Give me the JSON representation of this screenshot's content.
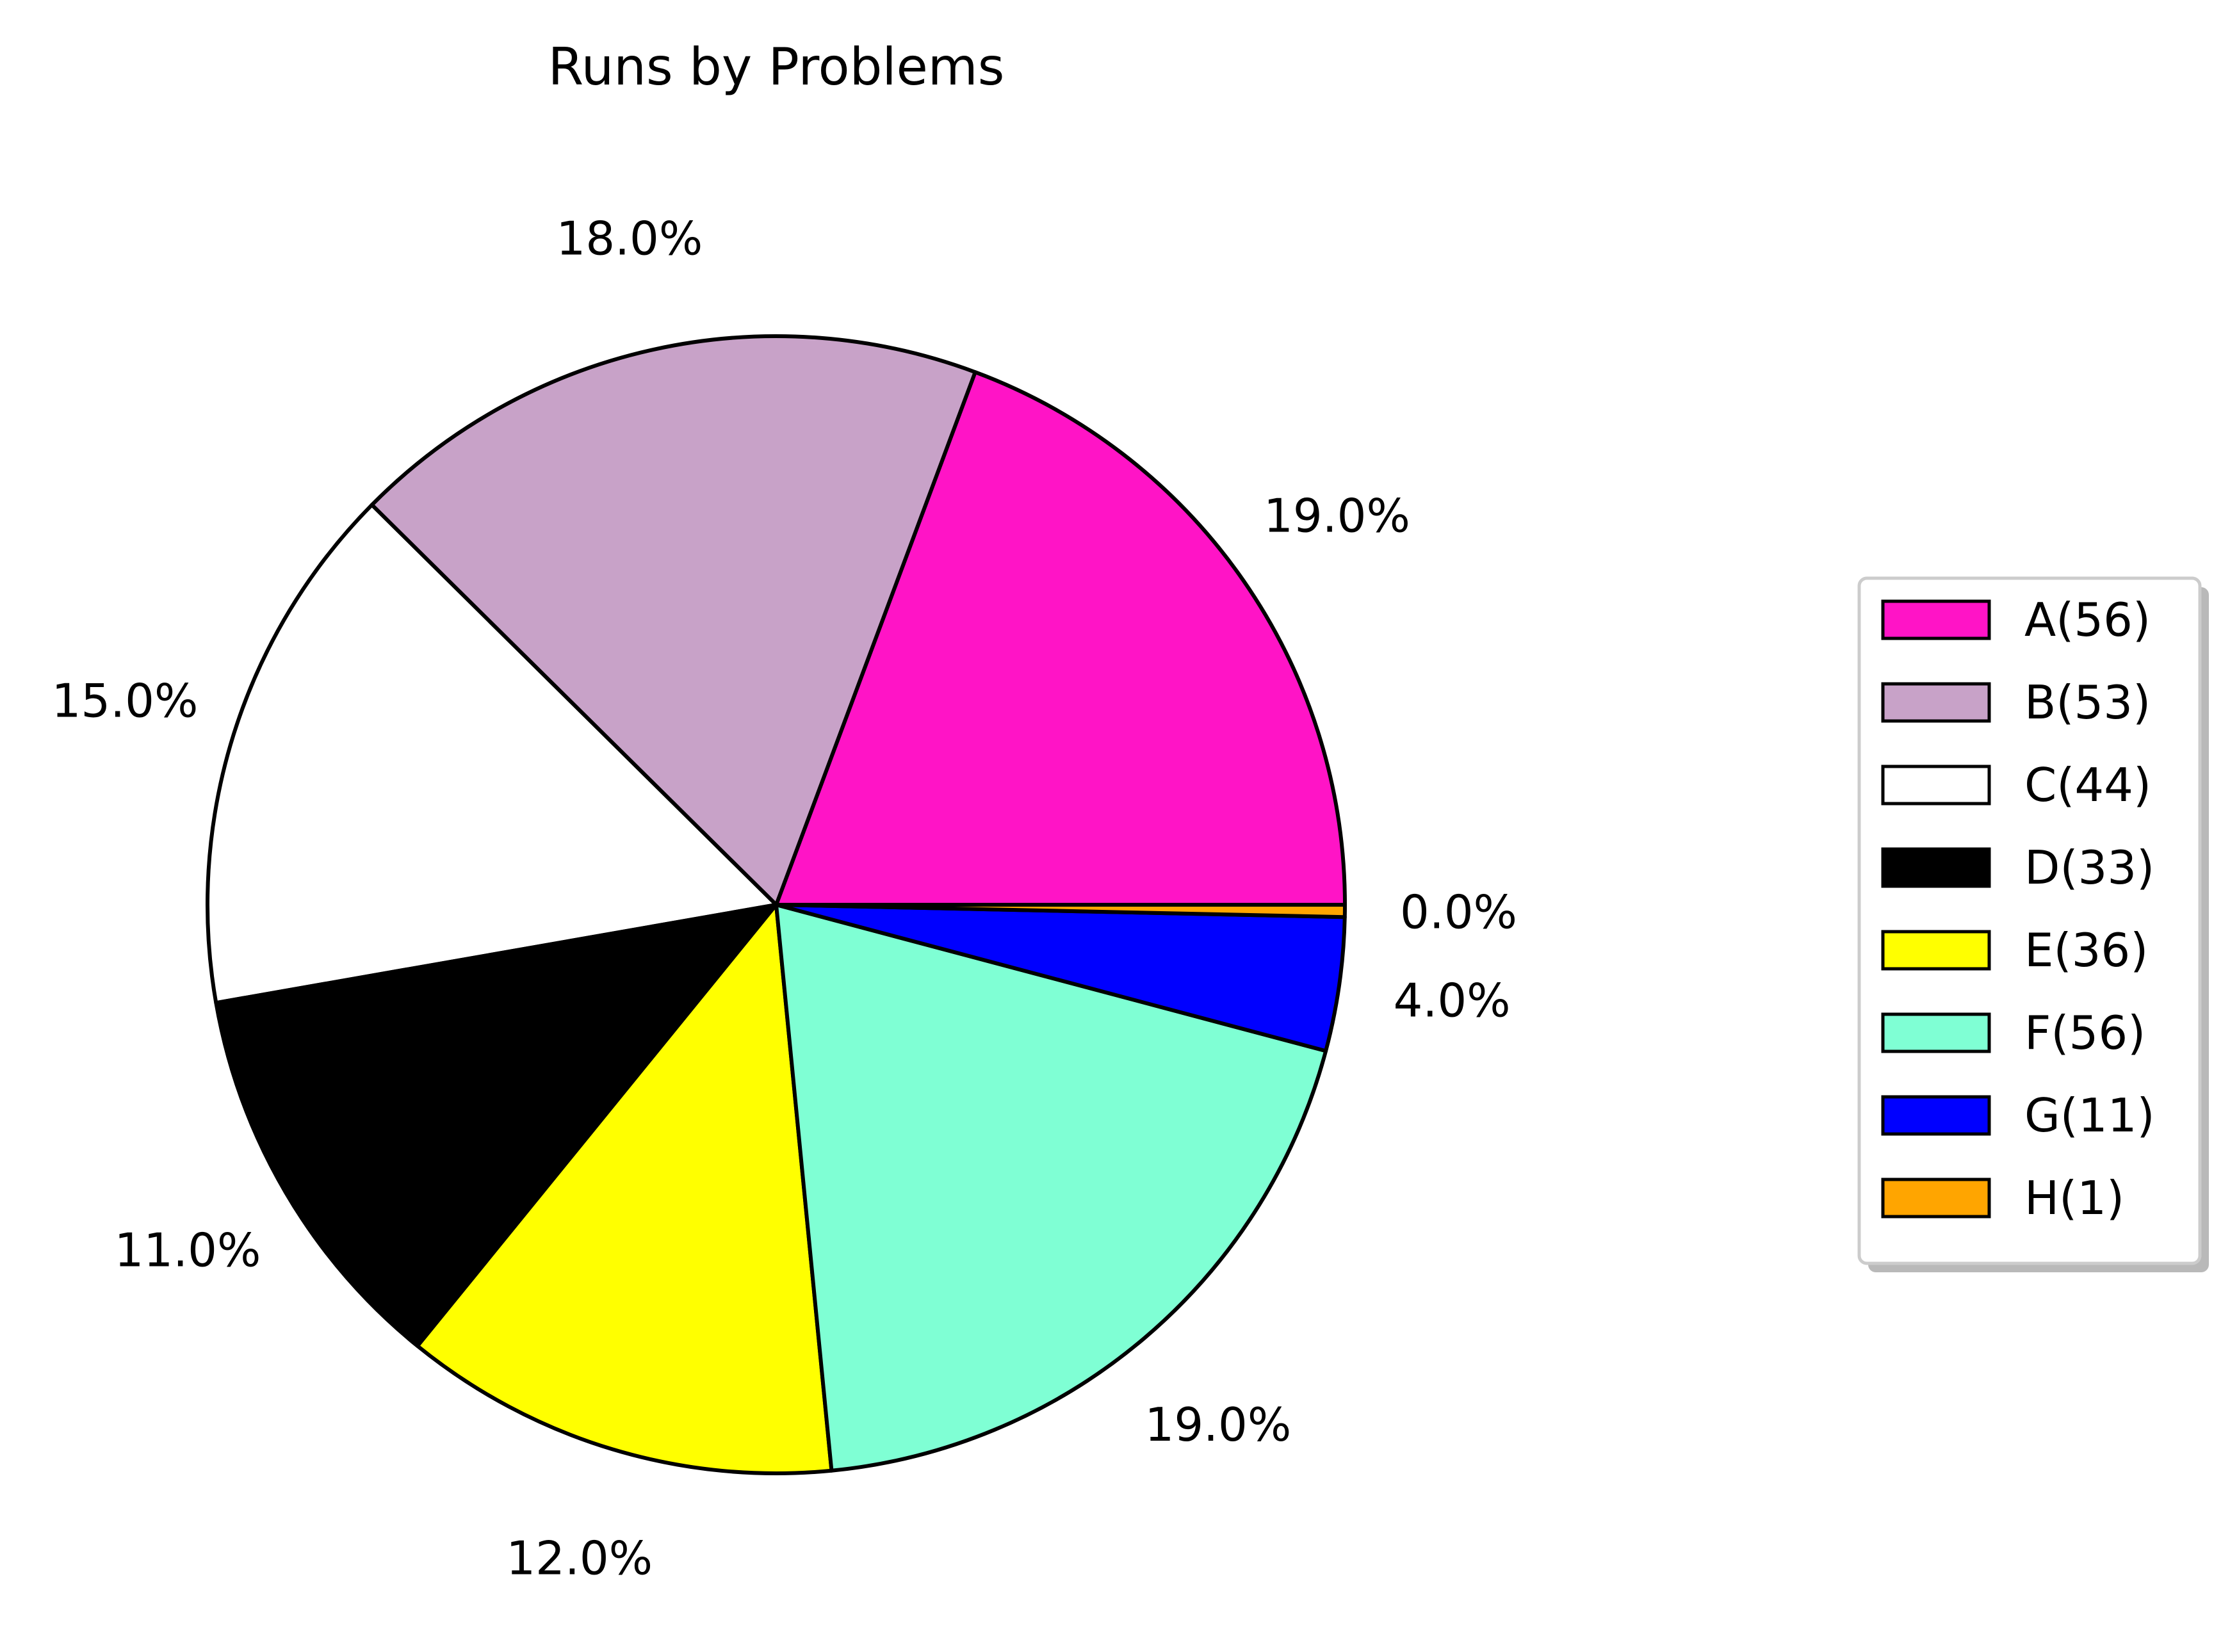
{
  "chart_data": {
    "type": "pie",
    "title": "Runs by Problems",
    "start_angle": "0deg (3 o'clock)",
    "direction": "counterclockwise",
    "legend_position": "right",
    "legend_shadow": true,
    "slices": [
      {
        "label": "A(56)",
        "value": 56,
        "pct_label": "19.0%",
        "color": "#ff14c6"
      },
      {
        "label": "B(53)",
        "value": 53,
        "pct_label": "18.0%",
        "color": "#c8a2c8"
      },
      {
        "label": "C(44)",
        "value": 44,
        "pct_label": "15.0%",
        "color": "#ffffff"
      },
      {
        "label": "D(33)",
        "value": 33,
        "pct_label": "11.0%",
        "color": "#000000"
      },
      {
        "label": "E(36)",
        "value": 36,
        "pct_label": "12.0%",
        "color": "#ffff00"
      },
      {
        "label": "F(56)",
        "value": 56,
        "pct_label": "19.0%",
        "color": "#7fffd4"
      },
      {
        "label": "G(11)",
        "value": 11,
        "pct_label": "4.0%",
        "color": "#0000ff"
      },
      {
        "label": "H(1)",
        "value": 1,
        "pct_label": "0.0%",
        "color": "#ffa500"
      }
    ]
  }
}
